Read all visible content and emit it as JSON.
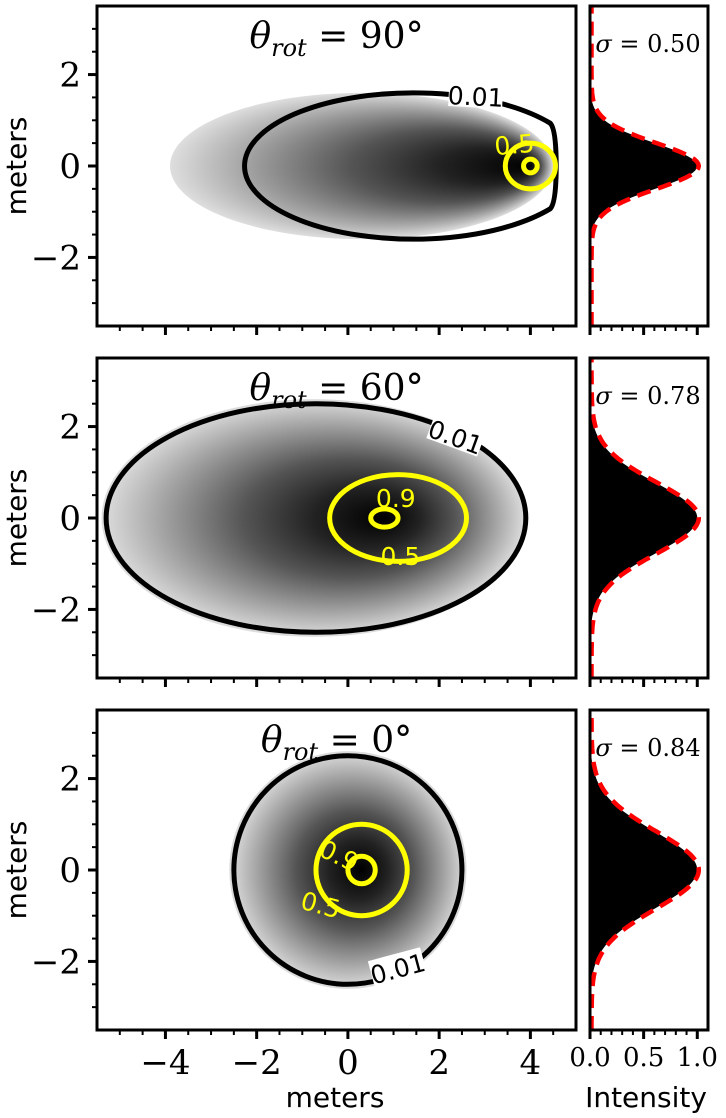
{
  "figure": {
    "xlabel": "meters",
    "ylabel": "meters",
    "side_xlabel": "Intensity"
  },
  "colors": {
    "outer_contour": "#000000",
    "inner_contour": "#ffff00",
    "fit_curve": "#ff0000",
    "profile_fill": "#000000",
    "background": "#ffffff"
  },
  "chart_data": [
    {
      "type": "heatmap",
      "title": "θrot = 90°",
      "xlim": [
        -5.5,
        5
      ],
      "ylim": [
        -3.5,
        3.5
      ],
      "xticks": [
        -4,
        -2,
        0,
        2,
        4
      ],
      "yticks": [
        -2,
        0,
        2
      ],
      "tick_labels_x": [
        "",
        "",
        "",
        "",
        ""
      ],
      "tick_labels_y": [
        "−2",
        "0",
        "2"
      ],
      "intensity_extent": {
        "x": [
          -3.9,
          4.5
        ],
        "y": [
          -1.6,
          1.6
        ]
      },
      "peak": [
        4.0,
        0
      ],
      "contours": [
        {
          "level": 0.01,
          "label": "0.01",
          "center": [
            1.5,
            0
          ],
          "radius_x": 3.7,
          "radius_y": 1.6,
          "clip_x_max": 4.5
        },
        {
          "level": 0.5,
          "label": "0.5",
          "center": [
            4.0,
            0
          ],
          "radius_x": 0.55,
          "radius_y": 0.5
        },
        {
          "level": 0.9,
          "label": "",
          "center": [
            4.0,
            0
          ],
          "radius_x": 0.15,
          "radius_y": 0.15
        }
      ]
    },
    {
      "type": "heatmap",
      "title": "θrot = 60°",
      "xlim": [
        -5.5,
        5
      ],
      "ylim": [
        -3.5,
        3.5
      ],
      "xticks": [
        -4,
        -2,
        0,
        2,
        4
      ],
      "yticks": [
        -2,
        0,
        2
      ],
      "tick_labels_x": [
        "",
        "",
        "",
        "",
        ""
      ],
      "tick_labels_y": [
        "−2",
        "0",
        "2"
      ],
      "intensity_extent": {
        "x": [
          -5.4,
          3.9
        ],
        "y": [
          -2.6,
          2.6
        ]
      },
      "peak": [
        0.8,
        0
      ],
      "contours": [
        {
          "level": 0.01,
          "label": "0.01",
          "center": [
            -0.7,
            0
          ],
          "radius_x": 4.6,
          "radius_y": 2.5
        },
        {
          "level": 0.5,
          "label": "0.5",
          "center": [
            1.1,
            0
          ],
          "radius_x": 1.5,
          "radius_y": 0.95
        },
        {
          "level": 0.9,
          "label": "0.9",
          "center": [
            0.8,
            0
          ],
          "radius_x": 0.3,
          "radius_y": 0.2
        }
      ]
    },
    {
      "type": "heatmap",
      "title": "θrot = 0°",
      "xlim": [
        -5.5,
        5
      ],
      "ylim": [
        -3.5,
        3.5
      ],
      "xticks": [
        -4,
        -2,
        0,
        2,
        4
      ],
      "yticks": [
        -2,
        0,
        2
      ],
      "tick_labels_x": [
        "−4",
        "−2",
        "0",
        "2",
        "4"
      ],
      "tick_labels_y": [
        "−2",
        "0",
        "2"
      ],
      "intensity_extent": {
        "x": [
          -2.6,
          2.6
        ],
        "y": [
          -2.6,
          2.6
        ]
      },
      "peak": [
        0.3,
        0
      ],
      "contours": [
        {
          "level": 0.01,
          "label": "0.01",
          "center": [
            0,
            0
          ],
          "radius_x": 2.5,
          "radius_y": 2.5
        },
        {
          "level": 0.5,
          "label": "0.5",
          "center": [
            0.3,
            0
          ],
          "radius_x": 1.0,
          "radius_y": 1.0
        },
        {
          "level": 0.9,
          "label": "0.9",
          "center": [
            0.3,
            0
          ],
          "radius_x": 0.3,
          "radius_y": 0.3
        }
      ]
    },
    {
      "type": "area",
      "sigma_label": "σ = 0.50",
      "sigma": 0.5,
      "xlim": [
        0,
        1.1
      ],
      "ylim": [
        -3.5,
        3.5
      ],
      "xticks": [
        0.0,
        0.5,
        1.0
      ],
      "tick_labels_x": [
        "",
        "",
        ""
      ],
      "series": [
        {
          "name": "",
          "type": "profile",
          "peak_y": 0,
          "sigma": 0.5
        },
        {
          "name": "",
          "type": "gaussian-fit",
          "peak_y": 0,
          "sigma": 0.5
        }
      ]
    },
    {
      "type": "area",
      "sigma_label": "σ = 0.78",
      "sigma": 0.78,
      "xlim": [
        0,
        1.1
      ],
      "ylim": [
        -3.5,
        3.5
      ],
      "xticks": [
        0.0,
        0.5,
        1.0
      ],
      "tick_labels_x": [
        "",
        "",
        ""
      ],
      "series": [
        {
          "name": "",
          "type": "profile",
          "peak_y": 0,
          "sigma": 0.78
        },
        {
          "name": "",
          "type": "gaussian-fit",
          "peak_y": 0,
          "sigma": 0.78
        }
      ]
    },
    {
      "type": "area",
      "sigma_label": "σ = 0.84",
      "sigma": 0.84,
      "xlim": [
        0,
        1.1
      ],
      "ylim": [
        -3.5,
        3.5
      ],
      "xticks": [
        0.0,
        0.5,
        1.0
      ],
      "tick_labels_x": [
        "0.0",
        "0.5",
        "1.0"
      ],
      "series": [
        {
          "name": "",
          "type": "profile",
          "peak_y": 0,
          "sigma": 0.84
        },
        {
          "name": "",
          "type": "gaussian-fit",
          "peak_y": 0,
          "sigma": 0.84
        }
      ]
    }
  ]
}
